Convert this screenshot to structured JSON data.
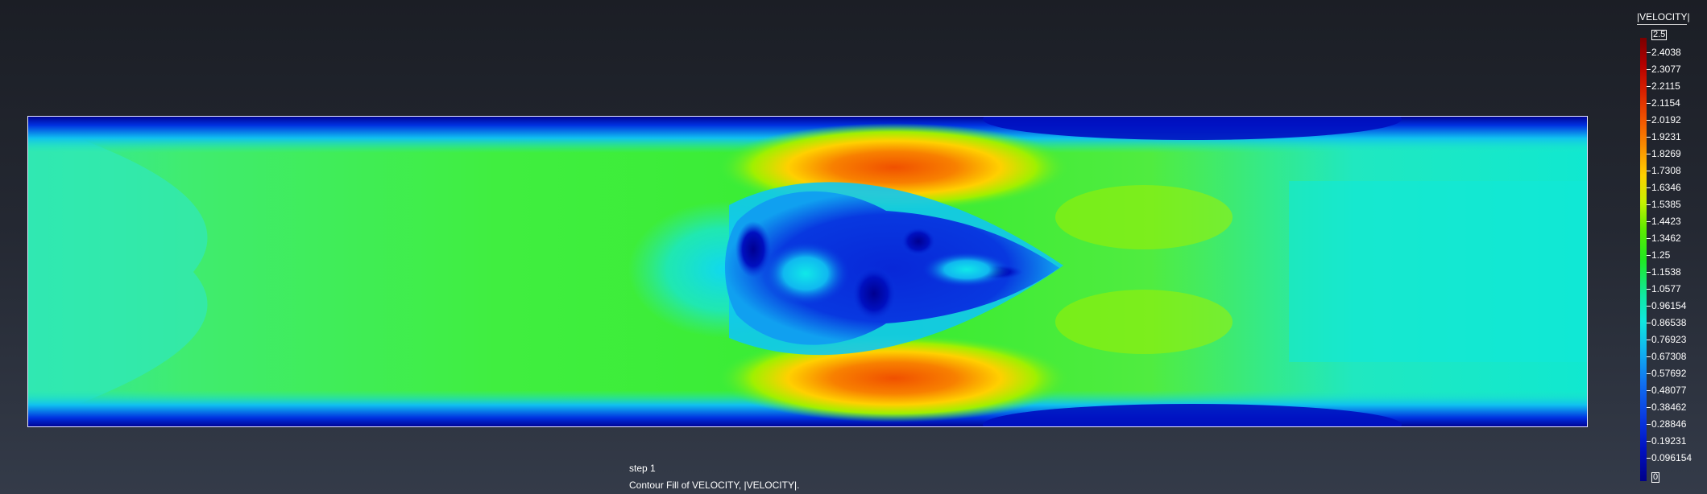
{
  "legend": {
    "title": "|VELOCITY|",
    "max_label": "2.5",
    "min_label": "0",
    "tick_labels": [
      "2.4038",
      "2.3077",
      "2.2115",
      "2.1154",
      "2.0192",
      "1.9231",
      "1.8269",
      "1.7308",
      "1.6346",
      "1.5385",
      "1.4423",
      "1.3462",
      "1.25",
      "1.1538",
      "1.0577",
      "0.96154",
      "0.86538",
      "0.76923",
      "0.67308",
      "0.57692",
      "0.48077",
      "0.38462",
      "0.28846",
      "0.19231",
      "0.096154"
    ]
  },
  "caption": {
    "step": "step 1",
    "description": "Contour Fill of VELOCITY, |VELOCITY|."
  },
  "colors": {
    "background_top": "#1b1e25",
    "background_bottom": "#343b49",
    "frame": "#e8e8ff"
  }
}
